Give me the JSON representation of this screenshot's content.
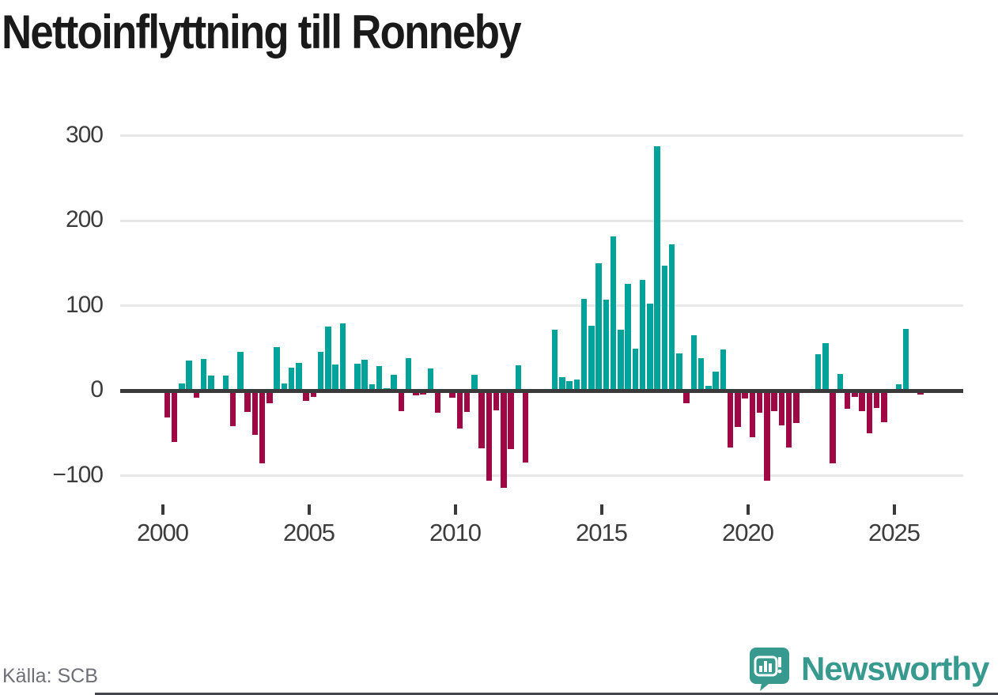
{
  "title": "Nettoinflyttning till Ronneby",
  "source": "Källa: SCB",
  "branding": {
    "name": "Newsworthy",
    "icon": "newsworthy-speech-bubble-bar-chart-icon"
  },
  "colors": {
    "positive": "#00a39a",
    "negative": "#a00845",
    "axis": "#3a3a3a",
    "grid": "#e8e8e8",
    "title_text": "#1a1a1a",
    "tick_text": "#3c3c3c",
    "source_text": "#6f6f78",
    "brand_teal": "#38998f",
    "bottom_strip": "#45454d"
  },
  "chart_data": {
    "type": "bar",
    "title": "Nettoinflyttning till Ronneby",
    "xlabel": "",
    "ylabel": "",
    "frequency": "quarterly",
    "x_start": "2000-Q1",
    "x_end": "2025-Q4",
    "values": [
      -32,
      -60,
      8,
      35,
      -8,
      37,
      18,
      0,
      18,
      -42,
      46,
      -25,
      -52,
      -86,
      -15,
      51,
      8,
      27,
      33,
      -12,
      -7,
      46,
      75,
      31,
      79,
      0,
      32,
      36,
      7,
      29,
      3,
      19,
      -24,
      38,
      -6,
      -5,
      26,
      -26,
      0,
      -8,
      -45,
      -25,
      19,
      -68,
      -106,
      -23,
      -114,
      -69,
      30,
      -85,
      0,
      0,
      0,
      72,
      16,
      11,
      13,
      108,
      76,
      150,
      107,
      181,
      72,
      126,
      49,
      130,
      102,
      287,
      147,
      172,
      44,
      -15,
      65,
      38,
      6,
      22,
      48,
      -67,
      -43,
      -9,
      -55,
      -26,
      -106,
      -24,
      -41,
      -67,
      -38,
      0,
      0,
      43,
      56,
      -86,
      20,
      -21,
      -7,
      -24,
      -50,
      -20,
      -37,
      0,
      7,
      73,
      0,
      -5
    ],
    "y_ticks": [
      300,
      200,
      100,
      0,
      -100
    ],
    "y_tick_labels": [
      "300",
      "200",
      "100",
      "0",
      "−100"
    ],
    "x_tick_years": [
      2000,
      2005,
      2010,
      2015,
      2020,
      2025
    ],
    "x_tick_labels": [
      "2000",
      "2005",
      "2010",
      "2015",
      "2020",
      "2025"
    ],
    "ylim": [
      -125,
      310
    ],
    "grid": "horizontal-only",
    "legend": "none",
    "positive_color": "#00a39a",
    "negative_color": "#a00845"
  }
}
